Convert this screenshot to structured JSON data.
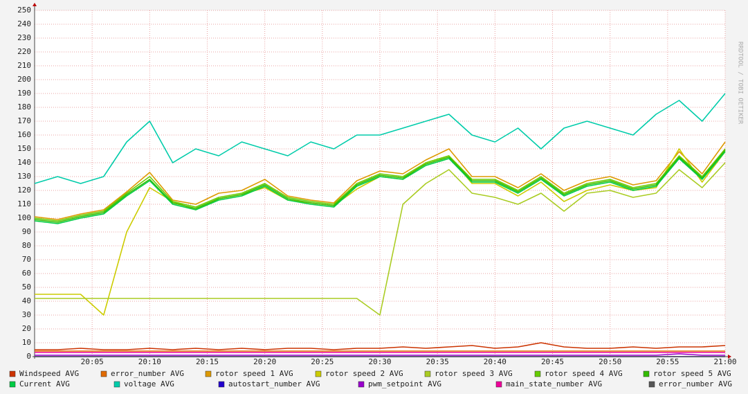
{
  "chart_data": {
    "type": "line",
    "watermark": "RRDTOOL / TOBI OETIKER",
    "x": [
      "20:00",
      "20:02",
      "20:04",
      "20:06",
      "20:08",
      "20:10",
      "20:12",
      "20:14",
      "20:16",
      "20:18",
      "20:20",
      "20:22",
      "20:24",
      "20:26",
      "20:28",
      "20:30",
      "20:32",
      "20:34",
      "20:36",
      "20:38",
      "20:40",
      "20:42",
      "20:44",
      "20:46",
      "20:48",
      "20:50",
      "20:52",
      "20:54",
      "20:56",
      "20:58",
      "21:00"
    ],
    "xlim": [
      "20:00",
      "21:00"
    ],
    "xticks": [
      "20:05",
      "20:10",
      "20:15",
      "20:20",
      "20:25",
      "20:30",
      "20:35",
      "20:40",
      "20:45",
      "20:50",
      "20:55",
      "21:00"
    ],
    "ylim": [
      0,
      250
    ],
    "yticks": [
      0,
      10,
      20,
      30,
      40,
      50,
      60,
      70,
      80,
      90,
      100,
      110,
      120,
      130,
      140,
      150,
      160,
      170,
      180,
      190,
      200,
      210,
      220,
      230,
      240,
      250
    ],
    "grid": true,
    "series": [
      {
        "name": "Windspeed AVG",
        "color": "#cc3300",
        "values": [
          5,
          5,
          6,
          5,
          5,
          6,
          5,
          6,
          5,
          6,
          5,
          6,
          6,
          5,
          6,
          6,
          7,
          6,
          7,
          8,
          6,
          7,
          10,
          7,
          6,
          6,
          7,
          6,
          7,
          7,
          8
        ]
      },
      {
        "name": "error_number AVG",
        "color": "#e06a00",
        "values": [
          4,
          4,
          4,
          4,
          4,
          4,
          4,
          4,
          4,
          4,
          4,
          4,
          4,
          4,
          4,
          4,
          4,
          4,
          4,
          4,
          4,
          4,
          4,
          4,
          4,
          4,
          4,
          4,
          4,
          4,
          4
        ]
      },
      {
        "name": "rotor speed 1 AVG",
        "color": "#dd9900",
        "values": [
          101,
          99,
          103,
          106,
          119,
          133,
          113,
          110,
          118,
          120,
          128,
          116,
          113,
          111,
          127,
          134,
          132,
          142,
          150,
          130,
          130,
          122,
          132,
          120,
          127,
          130,
          124,
          127,
          148,
          132,
          155
        ]
      },
      {
        "name": "rotor speed 2 AVG",
        "color": "#cccc00",
        "values": [
          45,
          45,
          45,
          30,
          90,
          122,
          112,
          106,
          114,
          117,
          122,
          113,
          111,
          109,
          121,
          130,
          128,
          140,
          145,
          125,
          125,
          116,
          126,
          112,
          120,
          124,
          120,
          122,
          150,
          126,
          148
        ]
      },
      {
        "name": "rotor speed 3 AVG",
        "color": "#aacc22",
        "values": [
          42,
          42,
          42,
          42,
          42,
          42,
          42,
          42,
          42,
          42,
          42,
          42,
          42,
          42,
          42,
          30,
          110,
          125,
          135,
          118,
          115,
          110,
          118,
          105,
          118,
          120,
          115,
          118,
          135,
          122,
          140
        ]
      },
      {
        "name": "rotor speed 4 AVG",
        "color": "#66cc00",
        "values": [
          100,
          98,
          102,
          105,
          118,
          130,
          112,
          108,
          115,
          118,
          125,
          115,
          112,
          110,
          125,
          132,
          130,
          140,
          145,
          128,
          128,
          120,
          130,
          118,
          125,
          128,
          122,
          125,
          145,
          130,
          150
        ]
      },
      {
        "name": "rotor speed 5 AVG",
        "color": "#33bb00",
        "values": [
          99,
          97,
          101,
          104,
          117,
          128,
          111,
          107,
          114,
          117,
          124,
          114,
          111,
          109,
          124,
          131,
          129,
          139,
          144,
          127,
          127,
          119,
          129,
          117,
          124,
          127,
          121,
          124,
          144,
          129,
          149
        ]
      },
      {
        "name": "Current AVG",
        "color": "#00cc44",
        "values": [
          98,
          96,
          100,
          103,
          116,
          127,
          110,
          106,
          113,
          116,
          123,
          113,
          110,
          108,
          123,
          130,
          128,
          138,
          143,
          126,
          126,
          118,
          128,
          116,
          123,
          126,
          120,
          123,
          143,
          128,
          148
        ]
      },
      {
        "name": "voltage AVG",
        "color": "#00ccaa",
        "values": [
          125,
          130,
          125,
          130,
          155,
          170,
          140,
          150,
          145,
          155,
          150,
          145,
          155,
          150,
          160,
          160,
          165,
          170,
          175,
          160,
          155,
          165,
          150,
          165,
          170,
          165,
          160,
          175,
          185,
          170,
          190
        ]
      },
      {
        "name": "autostart_number AVG",
        "color": "#2200cc",
        "values": [
          0,
          0,
          0,
          0,
          0,
          0,
          0,
          0,
          0,
          0,
          0,
          0,
          0,
          0,
          0,
          0,
          0,
          0,
          0,
          0,
          0,
          0,
          0,
          0,
          0,
          0,
          0,
          0,
          0,
          0,
          0
        ]
      },
      {
        "name": "pwm_setpoint AVG",
        "color": "#9900cc",
        "values": [
          1,
          1,
          1,
          1,
          1,
          1,
          1,
          1,
          1,
          1,
          1,
          1,
          1,
          1,
          1,
          1,
          1,
          1,
          1,
          1,
          1,
          1,
          1,
          1,
          1,
          1,
          1,
          1,
          2,
          1,
          1
        ]
      },
      {
        "name": "main_state_number AVG",
        "color": "#ee0099",
        "values": [
          3,
          3,
          3,
          3,
          3,
          3,
          3,
          3,
          3,
          3,
          3,
          3,
          3,
          3,
          3,
          3,
          3,
          3,
          3,
          3,
          3,
          3,
          3,
          3,
          3,
          3,
          3,
          3,
          3,
          3,
          3
        ]
      },
      {
        "name": "error_number AVG",
        "color": "#555555",
        "values": [
          0,
          0,
          0,
          0,
          0,
          0,
          0,
          0,
          0,
          0,
          0,
          0,
          0,
          0,
          0,
          0,
          0,
          0,
          0,
          0,
          0,
          0,
          0,
          0,
          0,
          0,
          0,
          0,
          0,
          0,
          0
        ]
      }
    ]
  }
}
